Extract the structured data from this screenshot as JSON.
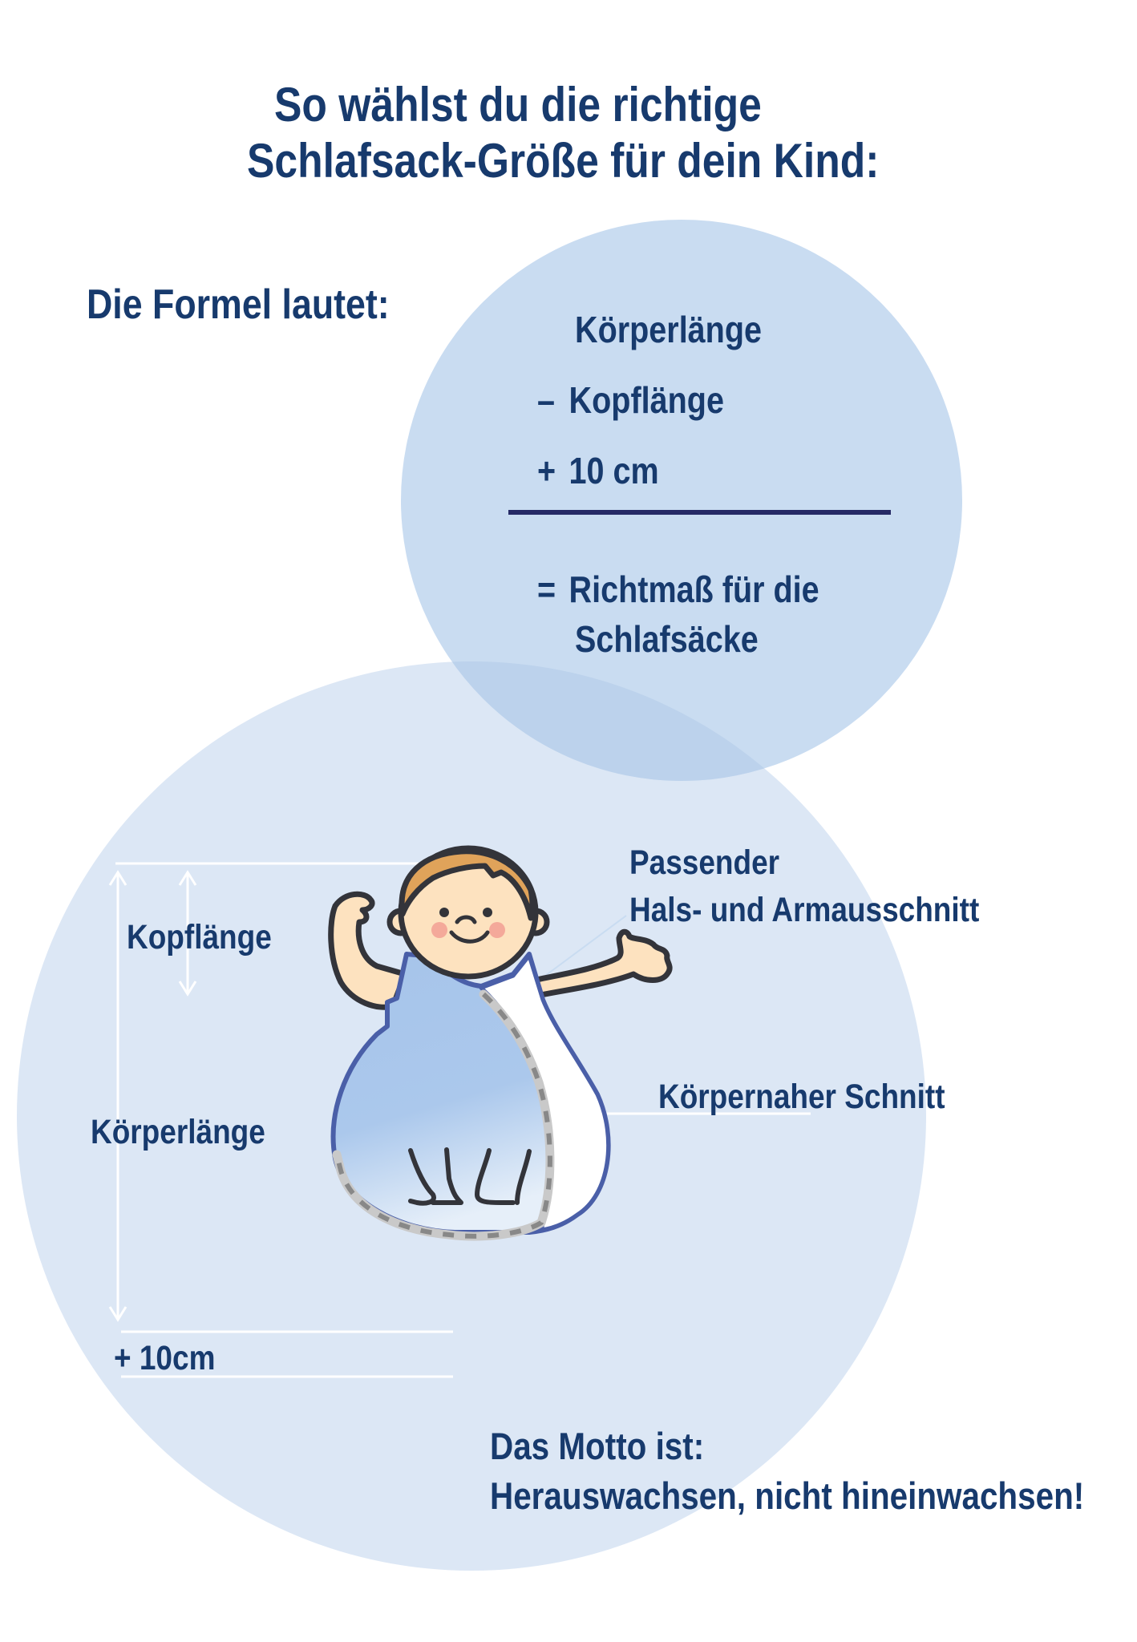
{
  "title": {
    "line1": "So wählst du die richtige",
    "line2": "Schlafsack-Größe für dein Kind:"
  },
  "formula": {
    "heading": "Die Formel lautet:",
    "lines": [
      {
        "sign": "",
        "text": "Körperlänge"
      },
      {
        "sign": "–",
        "text": "Kopflänge"
      },
      {
        "sign": "+",
        "text": "10 cm"
      }
    ],
    "result_sign": "=",
    "result_line1": "Richtmaß für die",
    "result_line2": "Schlafsäcke"
  },
  "measurements": {
    "head": "Kopflänge",
    "body": "Körperlänge",
    "extra": "+ 10cm"
  },
  "features": {
    "neck_line1": "Passender",
    "neck_line2": "Hals- und Armausschnitt",
    "cut": "Körpernaher Schnitt"
  },
  "motto": {
    "line1": "Das Motto ist:",
    "line2": "Herauswachsen, nicht hineinwachsen!"
  },
  "colors": {
    "text": "#173a6d",
    "circle_top": "#c8dcf0",
    "circle_bottom": "#dce7f5",
    "sack_blue": "#a9c7ec",
    "sack_outline": "#4a5fa8"
  }
}
